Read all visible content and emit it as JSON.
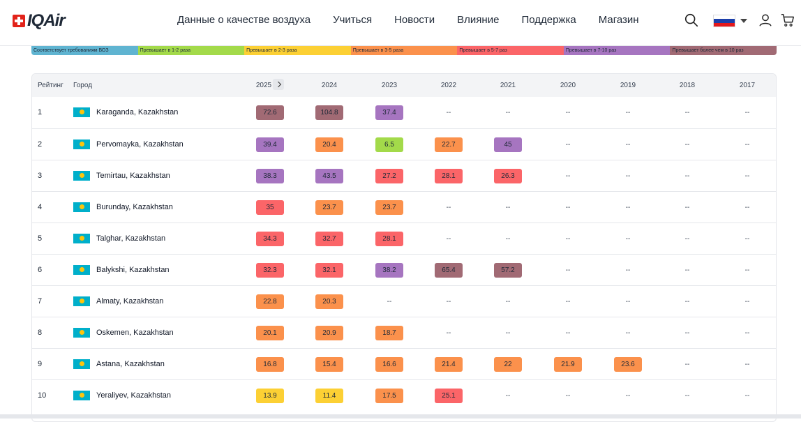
{
  "brand": {
    "logo_text": "IQAir"
  },
  "nav": {
    "items": [
      "Данные о качестве воздуха",
      "Учиться",
      "Новости",
      "Влияние",
      "Поддержка",
      "Магазин"
    ]
  },
  "header_icons": [
    "search-icon",
    "russia-flag-icon",
    "chevron-down-icon",
    "user-icon",
    "cart-icon"
  ],
  "legend": [
    {
      "label": "Соответствует требованиям ВОЗ",
      "color": "#5fb4d1"
    },
    {
      "label": "Превышает в 1-2 раза",
      "color": "#a3da4a"
    },
    {
      "label": "Превышает в 2-3 раза",
      "color": "#fcd034"
    },
    {
      "label": "Превышает в 3-5 раза",
      "color": "#fb914c"
    },
    {
      "label": "Превышает в 5-7 раз",
      "color": "#fb6568"
    },
    {
      "label": "Превышает в 7-10 раз",
      "color": "#a675c0"
    },
    {
      "label": "Превышает более чем в 10 раз",
      "color": "#a16a74"
    }
  ],
  "table": {
    "headers": {
      "rank": "Рейтинг",
      "city": "Город"
    },
    "years": [
      "2025",
      "2024",
      "2023",
      "2022",
      "2021",
      "2020",
      "2019",
      "2018",
      "2017"
    ],
    "rows": [
      {
        "rank": "1",
        "city": "Karaganda, Kazakhstan",
        "values": [
          "72.6",
          "104.8",
          "37.4",
          "--",
          "--",
          "--",
          "--",
          "--",
          "--"
        ],
        "colors": [
          "#a16a74",
          "#a16a74",
          "#a675c0",
          "",
          "",
          "",
          "",
          "",
          ""
        ]
      },
      {
        "rank": "2",
        "city": "Pervomayka, Kazakhstan",
        "values": [
          "39.4",
          "20.4",
          "6.5",
          "22.7",
          "45",
          "--",
          "--",
          "--",
          "--"
        ],
        "colors": [
          "#a675c0",
          "#fb914c",
          "#a3da4a",
          "#fb914c",
          "#a675c0",
          "",
          "",
          "",
          ""
        ]
      },
      {
        "rank": "3",
        "city": "Temirtau, Kazakhstan",
        "values": [
          "38.3",
          "43.5",
          "27.2",
          "28.1",
          "26.3",
          "--",
          "--",
          "--",
          "--"
        ],
        "colors": [
          "#a675c0",
          "#a675c0",
          "#fb6568",
          "#fb6568",
          "#fb6568",
          "",
          "",
          "",
          ""
        ]
      },
      {
        "rank": "4",
        "city": "Burunday, Kazakhstan",
        "values": [
          "35",
          "23.7",
          "23.7",
          "--",
          "--",
          "--",
          "--",
          "--",
          "--"
        ],
        "colors": [
          "#fb6568",
          "#fb914c",
          "#fb914c",
          "",
          "",
          "",
          "",
          "",
          ""
        ]
      },
      {
        "rank": "5",
        "city": "Talghar, Kazakhstan",
        "values": [
          "34.3",
          "32.7",
          "28.1",
          "--",
          "--",
          "--",
          "--",
          "--",
          "--"
        ],
        "colors": [
          "#fb6568",
          "#fb6568",
          "#fb6568",
          "",
          "",
          "",
          "",
          "",
          ""
        ]
      },
      {
        "rank": "6",
        "city": "Balykshi, Kazakhstan",
        "values": [
          "32.3",
          "32.1",
          "38.2",
          "65.4",
          "57.2",
          "--",
          "--",
          "--",
          "--"
        ],
        "colors": [
          "#fb6568",
          "#fb6568",
          "#a675c0",
          "#a16a74",
          "#a16a74",
          "",
          "",
          "",
          ""
        ]
      },
      {
        "rank": "7",
        "city": "Almaty, Kazakhstan",
        "values": [
          "22.8",
          "20.3",
          "--",
          "--",
          "--",
          "--",
          "--",
          "--",
          "--"
        ],
        "colors": [
          "#fb914c",
          "#fb914c",
          "",
          "",
          "",
          "",
          "",
          "",
          ""
        ]
      },
      {
        "rank": "8",
        "city": "Oskemen, Kazakhstan",
        "values": [
          "20.1",
          "20.9",
          "18.7",
          "--",
          "--",
          "--",
          "--",
          "--",
          "--"
        ],
        "colors": [
          "#fb914c",
          "#fb914c",
          "#fb914c",
          "",
          "",
          "",
          "",
          "",
          ""
        ]
      },
      {
        "rank": "9",
        "city": "Astana, Kazakhstan",
        "values": [
          "16.8",
          "15.4",
          "16.6",
          "21.4",
          "22",
          "21.9",
          "23.6",
          "--",
          "--"
        ],
        "colors": [
          "#fb914c",
          "#fb914c",
          "#fb914c",
          "#fb914c",
          "#fb914c",
          "#fb914c",
          "#fb914c",
          "",
          ""
        ]
      },
      {
        "rank": "10",
        "city": "Yeraliyev, Kazakhstan",
        "values": [
          "13.9",
          "11.4",
          "17.5",
          "25.1",
          "--",
          "--",
          "--",
          "--",
          "--"
        ],
        "colors": [
          "#fcd034",
          "#fcd034",
          "#fb914c",
          "#fb6568",
          "",
          "",
          "",
          "",
          ""
        ]
      }
    ]
  }
}
